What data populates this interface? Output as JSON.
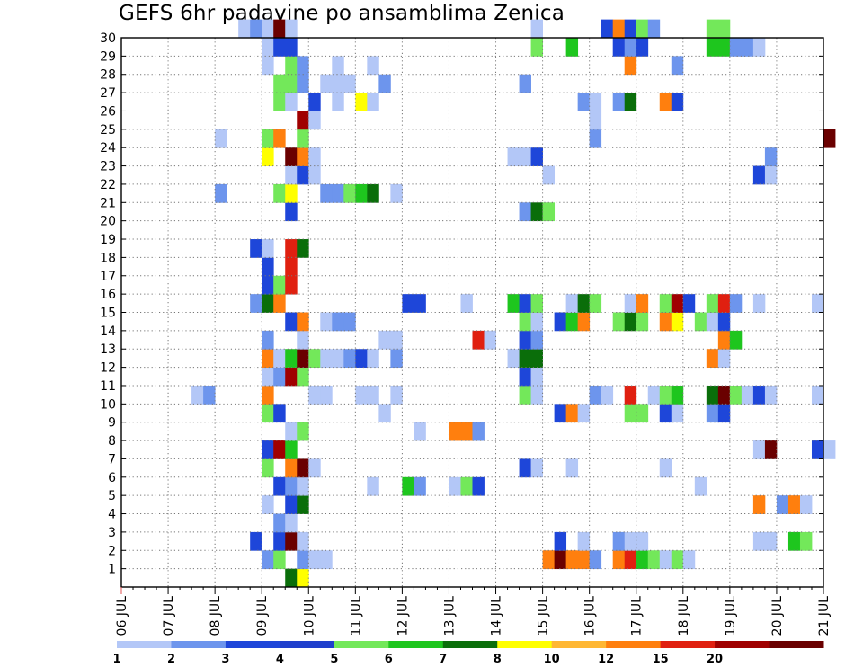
{
  "chart_data": {
    "type": "heatmap",
    "title": "GEFS 6hr padavine po ansamblima Zenica",
    "xlabel": "",
    "ylabel": "",
    "x_ticks": [
      "06 JUL",
      "07 JUL",
      "08 JUL",
      "09 JUL",
      "10 JUL",
      "11 JUL",
      "12 JUL",
      "13 JUL",
      "14 JUL",
      "15 JUL",
      "16 JUL",
      "17 JUL",
      "18 JUL",
      "19 JUL",
      "20 JUL",
      "21 JUL"
    ],
    "y_ticks": [
      "1",
      "2",
      "3",
      "4",
      "5",
      "6",
      "7",
      "8",
      "9",
      "10",
      "11",
      "12",
      "13",
      "14",
      "15",
      "16",
      "17",
      "18",
      "19",
      "20",
      "21",
      "22",
      "23",
      "24",
      "25",
      "26",
      "27",
      "28",
      "29",
      "30"
    ],
    "grid": "dotted",
    "legend": {
      "position": "bottom",
      "labels": [
        "1",
        "2",
        "3",
        "4",
        "5",
        "6",
        "7",
        "8",
        "10",
        "12",
        "15",
        "20"
      ],
      "colors": [
        "#b3c7f7",
        "#6d95ed",
        "#1e46d9",
        "#1f3fcc",
        "#73e85a",
        "#1ec61e",
        "#0a6e0a",
        "#ffff00",
        "#ffb733",
        "#ff7f0e",
        "#e02010",
        "#a00000",
        "#6a0000"
      ]
    },
    "x_range": [
      "06 JUL 00Z",
      "21 JUL 00Z"
    ],
    "time_step": "6hr",
    "cells": [
      [
        "09 JUL 12Z",
        0,
        7
      ],
      [
        "09 JUL 18Z",
        0,
        8
      ],
      [
        "09 JUL 00Z",
        1,
        2
      ],
      [
        "09 JUL 06Z",
        1,
        5
      ],
      [
        "09 JUL 18Z",
        1,
        2
      ],
      [
        "10 JUL 00Z",
        1,
        1
      ],
      [
        "10 JUL 06Z",
        1,
        1
      ],
      [
        "15 JUL 00Z",
        1,
        10
      ],
      [
        "15 JUL 06Z",
        1,
        20
      ],
      [
        "15 JUL 12Z",
        1,
        10
      ],
      [
        "15 JUL 18Z",
        1,
        10
      ],
      [
        "16 JUL 00Z",
        1,
        2
      ],
      [
        "16 JUL 12Z",
        1,
        10
      ],
      [
        "16 JUL 18Z",
        1,
        12
      ],
      [
        "17 JUL 00Z",
        1,
        6
      ],
      [
        "17 JUL 06Z",
        1,
        5
      ],
      [
        "17 JUL 12Z",
        1,
        1
      ],
      [
        "17 JUL 18Z",
        1,
        5
      ],
      [
        "18 JUL 00Z",
        1,
        1
      ],
      [
        "08 JUL 18Z",
        2,
        3
      ],
      [
        "09 JUL 06Z",
        2,
        3
      ],
      [
        "09 JUL 12Z",
        2,
        20
      ],
      [
        "09 JUL 18Z",
        2,
        1
      ],
      [
        "15 JUL 06Z",
        2,
        3
      ],
      [
        "15 JUL 18Z",
        2,
        1
      ],
      [
        "16 JUL 12Z",
        2,
        2
      ],
      [
        "16 JUL 18Z",
        2,
        1
      ],
      [
        "17 JUL 00Z",
        2,
        1
      ],
      [
        "19 JUL 12Z",
        2,
        1
      ],
      [
        "19 JUL 18Z",
        2,
        1
      ],
      [
        "20 JUL 06Z",
        2,
        6
      ],
      [
        "20 JUL 12Z",
        2,
        5
      ],
      [
        "09 JUL 06Z",
        3,
        2
      ],
      [
        "09 JUL 12Z",
        3,
        1
      ],
      [
        "09 JUL 00Z",
        4,
        1
      ],
      [
        "09 JUL 12Z",
        4,
        3
      ],
      [
        "09 JUL 18Z",
        4,
        7
      ],
      [
        "19 JUL 12Z",
        4,
        10
      ],
      [
        "20 JUL 00Z",
        4,
        2
      ],
      [
        "20 JUL 06Z",
        4,
        10
      ],
      [
        "20 JUL 12Z",
        4,
        1
      ],
      [
        "09 JUL 06Z",
        5,
        3
      ],
      [
        "09 JUL 12Z",
        5,
        2
      ],
      [
        "09 JUL 18Z",
        5,
        1
      ],
      [
        "11 JUL 06Z",
        5,
        1
      ],
      [
        "12 JUL 00Z",
        5,
        6
      ],
      [
        "12 JUL 06Z",
        5,
        2
      ],
      [
        "13 JUL 00Z",
        5,
        1
      ],
      [
        "13 JUL 06Z",
        5,
        5
      ],
      [
        "13 JUL 12Z",
        5,
        3
      ],
      [
        "18 JUL 06Z",
        5,
        1
      ],
      [
        "09 JUL 00Z",
        6,
        5
      ],
      [
        "09 JUL 12Z",
        6,
        10
      ],
      [
        "09 JUL 18Z",
        6,
        20
      ],
      [
        "10 JUL 00Z",
        6,
        1
      ],
      [
        "14 JUL 12Z",
        6,
        3
      ],
      [
        "14 JUL 18Z",
        6,
        1
      ],
      [
        "15 JUL 12Z",
        6,
        1
      ],
      [
        "17 JUL 12Z",
        6,
        1
      ],
      [
        "09 JUL 00Z",
        7,
        3
      ],
      [
        "09 JUL 06Z",
        7,
        15
      ],
      [
        "09 JUL 12Z",
        7,
        6
      ],
      [
        "19 JUL 12Z",
        7,
        1
      ],
      [
        "19 JUL 18Z",
        7,
        20
      ],
      [
        "20 JUL 18Z",
        7,
        3
      ],
      [
        "21 JUL 00Z",
        7,
        1
      ],
      [
        "09 JUL 12Z",
        8,
        1
      ],
      [
        "09 JUL 18Z",
        8,
        5
      ],
      [
        "12 JUL 06Z",
        8,
        1
      ],
      [
        "13 JUL 00Z",
        8,
        10
      ],
      [
        "13 JUL 06Z",
        8,
        10
      ],
      [
        "13 JUL 12Z",
        8,
        2
      ],
      [
        "09 JUL 00Z",
        9,
        5
      ],
      [
        "09 JUL 06Z",
        9,
        3
      ],
      [
        "11 JUL 12Z",
        9,
        1
      ],
      [
        "15 JUL 06Z",
        9,
        3
      ],
      [
        "15 JUL 12Z",
        9,
        10
      ],
      [
        "15 JUL 18Z",
        9,
        1
      ],
      [
        "16 JUL 18Z",
        9,
        5
      ],
      [
        "17 JUL 00Z",
        9,
        5
      ],
      [
        "17 JUL 12Z",
        9,
        3
      ],
      [
        "17 JUL 18Z",
        9,
        1
      ],
      [
        "18 JUL 12Z",
        9,
        2
      ],
      [
        "18 JUL 18Z",
        9,
        3
      ],
      [
        "07 JUL 12Z",
        10,
        1
      ],
      [
        "07 JUL 18Z",
        10,
        2
      ],
      [
        "09 JUL 00Z",
        10,
        10
      ],
      [
        "10 JUL 00Z",
        10,
        1
      ],
      [
        "10 JUL 06Z",
        10,
        1
      ],
      [
        "11 JUL 00Z",
        10,
        1
      ],
      [
        "11 JUL 06Z",
        10,
        1
      ],
      [
        "11 JUL 18Z",
        10,
        1
      ],
      [
        "14 JUL 12Z",
        10,
        5
      ],
      [
        "14 JUL 18Z",
        10,
        1
      ],
      [
        "16 JUL 00Z",
        10,
        2
      ],
      [
        "16 JUL 06Z",
        10,
        1
      ],
      [
        "16 JUL 18Z",
        10,
        12
      ],
      [
        "17 JUL 06Z",
        10,
        1
      ],
      [
        "17 JUL 12Z",
        10,
        5
      ],
      [
        "17 JUL 18Z",
        10,
        6
      ],
      [
        "18 JUL 12Z",
        10,
        7
      ],
      [
        "18 JUL 18Z",
        10,
        20
      ],
      [
        "19 JUL 00Z",
        10,
        5
      ],
      [
        "19 JUL 06Z",
        10,
        1
      ],
      [
        "19 JUL 12Z",
        10,
        3
      ],
      [
        "19 JUL 18Z",
        10,
        1
      ],
      [
        "20 JUL 18Z",
        10,
        1
      ],
      [
        "09 JUL 00Z",
        11,
        1
      ],
      [
        "09 JUL 06Z",
        11,
        2
      ],
      [
        "09 JUL 12Z",
        11,
        15
      ],
      [
        "09 JUL 18Z",
        11,
        5
      ],
      [
        "14 JUL 12Z",
        11,
        3
      ],
      [
        "14 JUL 18Z",
        11,
        1
      ],
      [
        "09 JUL 00Z",
        12,
        10
      ],
      [
        "09 JUL 06Z",
        12,
        1
      ],
      [
        "09 JUL 12Z",
        12,
        6
      ],
      [
        "09 JUL 18Z",
        12,
        20
      ],
      [
        "10 JUL 00Z",
        12,
        5
      ],
      [
        "10 JUL 06Z",
        12,
        1
      ],
      [
        "10 JUL 12Z",
        12,
        1
      ],
      [
        "10 JUL 18Z",
        12,
        2
      ],
      [
        "11 JUL 00Z",
        12,
        3
      ],
      [
        "11 JUL 06Z",
        12,
        1
      ],
      [
        "11 JUL 18Z",
        12,
        2
      ],
      [
        "14 JUL 06Z",
        12,
        1
      ],
      [
        "14 JUL 12Z",
        12,
        7
      ],
      [
        "14 JUL 18Z",
        12,
        7
      ],
      [
        "18 JUL 12Z",
        12,
        10
      ],
      [
        "18 JUL 18Z",
        12,
        1
      ],
      [
        "09 JUL 00Z",
        13,
        2
      ],
      [
        "09 JUL 18Z",
        13,
        1
      ],
      [
        "11 JUL 12Z",
        13,
        1
      ],
      [
        "11 JUL 18Z",
        13,
        1
      ],
      [
        "13 JUL 12Z",
        13,
        12
      ],
      [
        "13 JUL 18Z",
        13,
        1
      ],
      [
        "14 JUL 12Z",
        13,
        3
      ],
      [
        "14 JUL 18Z",
        13,
        2
      ],
      [
        "18 JUL 18Z",
        13,
        10
      ],
      [
        "19 JUL 00Z",
        13,
        6
      ],
      [
        "09 JUL 12Z",
        14,
        3
      ],
      [
        "09 JUL 18Z",
        14,
        10
      ],
      [
        "10 JUL 06Z",
        14,
        1
      ],
      [
        "10 JUL 12Z",
        14,
        2
      ],
      [
        "10 JUL 18Z",
        14,
        2
      ],
      [
        "14 JUL 12Z",
        14,
        5
      ],
      [
        "14 JUL 18Z",
        14,
        1
      ],
      [
        "15 JUL 06Z",
        14,
        3
      ],
      [
        "15 JUL 12Z",
        14,
        6
      ],
      [
        "15 JUL 18Z",
        14,
        10
      ],
      [
        "16 JUL 12Z",
        14,
        5
      ],
      [
        "16 JUL 18Z",
        14,
        7
      ],
      [
        "17 JUL 00Z",
        14,
        5
      ],
      [
        "17 JUL 12Z",
        14,
        10
      ],
      [
        "17 JUL 18Z",
        14,
        8
      ],
      [
        "18 JUL 06Z",
        14,
        5
      ],
      [
        "18 JUL 12Z",
        14,
        1
      ],
      [
        "18 JUL 18Z",
        14,
        3
      ],
      [
        "08 JUL 18Z",
        15,
        2
      ],
      [
        "09 JUL 00Z",
        15,
        7
      ],
      [
        "09 JUL 06Z",
        15,
        10
      ],
      [
        "12 JUL 00Z",
        15,
        3
      ],
      [
        "12 JUL 06Z",
        15,
        3
      ],
      [
        "13 JUL 06Z",
        15,
        1
      ],
      [
        "14 JUL 06Z",
        15,
        6
      ],
      [
        "14 JUL 12Z",
        15,
        3
      ],
      [
        "14 JUL 18Z",
        15,
        5
      ],
      [
        "15 JUL 12Z",
        15,
        1
      ],
      [
        "15 JUL 18Z",
        15,
        7
      ],
      [
        "16 JUL 00Z",
        15,
        5
      ],
      [
        "16 JUL 18Z",
        15,
        1
      ],
      [
        "17 JUL 00Z",
        15,
        10
      ],
      [
        "17 JUL 12Z",
        15,
        5
      ],
      [
        "17 JUL 18Z",
        15,
        15
      ],
      [
        "18 JUL 00Z",
        15,
        3
      ],
      [
        "18 JUL 12Z",
        15,
        5
      ],
      [
        "18 JUL 18Z",
        15,
        12
      ],
      [
        "19 JUL 00Z",
        15,
        2
      ],
      [
        "19 JUL 12Z",
        15,
        1
      ],
      [
        "20 JUL 18Z",
        15,
        1
      ],
      [
        "09 JUL 00Z",
        16,
        3
      ],
      [
        "09 JUL 06Z",
        16,
        5
      ],
      [
        "09 JUL 12Z",
        16,
        12
      ],
      [
        "09 JUL 00Z",
        17,
        3
      ],
      [
        "09 JUL 12Z",
        17,
        12
      ],
      [
        "08 JUL 18Z",
        18,
        3
      ],
      [
        "09 JUL 00Z",
        18,
        1
      ],
      [
        "09 JUL 12Z",
        18,
        12
      ],
      [
        "09 JUL 18Z",
        18,
        7
      ],
      [
        "09 JUL 12Z",
        20,
        3
      ],
      [
        "14 JUL 12Z",
        20,
        2
      ],
      [
        "14 JUL 18Z",
        20,
        7
      ],
      [
        "15 JUL 00Z",
        20,
        5
      ],
      [
        "08 JUL 00Z",
        21,
        2
      ],
      [
        "09 JUL 06Z",
        21,
        5
      ],
      [
        "09 JUL 12Z",
        21,
        8
      ],
      [
        "10 JUL 06Z",
        21,
        2
      ],
      [
        "10 JUL 12Z",
        21,
        2
      ],
      [
        "10 JUL 18Z",
        21,
        5
      ],
      [
        "11 JUL 00Z",
        21,
        6
      ],
      [
        "11 JUL 06Z",
        21,
        7
      ],
      [
        "11 JUL 18Z",
        21,
        1
      ],
      [
        "09 JUL 12Z",
        22,
        1
      ],
      [
        "09 JUL 18Z",
        22,
        3
      ],
      [
        "10 JUL 00Z",
        22,
        1
      ],
      [
        "15 JUL 00Z",
        22,
        1
      ],
      [
        "19 JUL 12Z",
        22,
        3
      ],
      [
        "19 JUL 18Z",
        22,
        1
      ],
      [
        "09 JUL 00Z",
        23,
        8
      ],
      [
        "09 JUL 12Z",
        23,
        20
      ],
      [
        "09 JUL 18Z",
        23,
        10
      ],
      [
        "10 JUL 00Z",
        23,
        1
      ],
      [
        "14 JUL 06Z",
        23,
        1
      ],
      [
        "14 JUL 12Z",
        23,
        1
      ],
      [
        "14 JUL 18Z",
        23,
        3
      ],
      [
        "19 JUL 18Z",
        23,
        2
      ],
      [
        "08 JUL 00Z",
        24,
        1
      ],
      [
        "09 JUL 00Z",
        24,
        5
      ],
      [
        "09 JUL 06Z",
        24,
        10
      ],
      [
        "09 JUL 18Z",
        24,
        5
      ],
      [
        "16 JUL 00Z",
        24,
        2
      ],
      [
        "21 JUL 00Z",
        24,
        20
      ],
      [
        "09 JUL 18Z",
        25,
        15
      ],
      [
        "10 JUL 00Z",
        25,
        1
      ],
      [
        "16 JUL 00Z",
        25,
        1
      ],
      [
        "09 JUL 06Z",
        26,
        5
      ],
      [
        "09 JUL 12Z",
        26,
        1
      ],
      [
        "10 JUL 00Z",
        26,
        3
      ],
      [
        "10 JUL 12Z",
        26,
        1
      ],
      [
        "11 JUL 00Z",
        26,
        8
      ],
      [
        "11 JUL 06Z",
        26,
        1
      ],
      [
        "15 JUL 18Z",
        26,
        2
      ],
      [
        "16 JUL 00Z",
        26,
        1
      ],
      [
        "16 JUL 12Z",
        26,
        2
      ],
      [
        "16 JUL 18Z",
        26,
        7
      ],
      [
        "17 JUL 12Z",
        26,
        10
      ],
      [
        "17 JUL 18Z",
        26,
        3
      ],
      [
        "09 JUL 06Z",
        27,
        5
      ],
      [
        "09 JUL 12Z",
        27,
        5
      ],
      [
        "09 JUL 18Z",
        27,
        2
      ],
      [
        "10 JUL 06Z",
        27,
        1
      ],
      [
        "10 JUL 12Z",
        27,
        1
      ],
      [
        "10 JUL 18Z",
        27,
        1
      ],
      [
        "11 JUL 12Z",
        27,
        2
      ],
      [
        "14 JUL 12Z",
        27,
        2
      ],
      [
        "09 JUL 00Z",
        28,
        1
      ],
      [
        "09 JUL 12Z",
        28,
        5
      ],
      [
        "09 JUL 18Z",
        28,
        2
      ],
      [
        "10 JUL 12Z",
        28,
        1
      ],
      [
        "11 JUL 06Z",
        28,
        1
      ],
      [
        "16 JUL 18Z",
        28,
        10
      ],
      [
        "17 JUL 18Z",
        28,
        2
      ],
      [
        "09 JUL 00Z",
        29,
        1
      ],
      [
        "09 JUL 06Z",
        29,
        3
      ],
      [
        "09 JUL 12Z",
        29,
        3
      ],
      [
        "14 JUL 18Z",
        29,
        5
      ],
      [
        "15 JUL 12Z",
        29,
        6
      ],
      [
        "16 JUL 12Z",
        29,
        3
      ],
      [
        "16 JUL 18Z",
        29,
        2
      ],
      [
        "17 JUL 00Z",
        29,
        3
      ],
      [
        "18 JUL 12Z",
        29,
        6
      ],
      [
        "18 JUL 18Z",
        29,
        6
      ],
      [
        "19 JUL 00Z",
        29,
        2
      ],
      [
        "19 JUL 06Z",
        29,
        2
      ],
      [
        "19 JUL 12Z",
        29,
        1
      ],
      [
        "08 JUL 12Z",
        30,
        1
      ],
      [
        "08 JUL 18Z",
        30,
        2
      ],
      [
        "09 JUL 00Z",
        30,
        1
      ],
      [
        "09 JUL 06Z",
        30,
        20
      ],
      [
        "09 JUL 12Z",
        30,
        1
      ],
      [
        "14 JUL 18Z",
        30,
        1
      ],
      [
        "16 JUL 06Z",
        30,
        3
      ],
      [
        "16 JUL 12Z",
        30,
        10
      ],
      [
        "16 JUL 18Z",
        30,
        3
      ],
      [
        "17 JUL 00Z",
        30,
        5
      ],
      [
        "17 JUL 06Z",
        30,
        2
      ],
      [
        "18 JUL 12Z",
        30,
        5
      ],
      [
        "18 JUL 18Z",
        30,
        5
      ]
    ]
  }
}
